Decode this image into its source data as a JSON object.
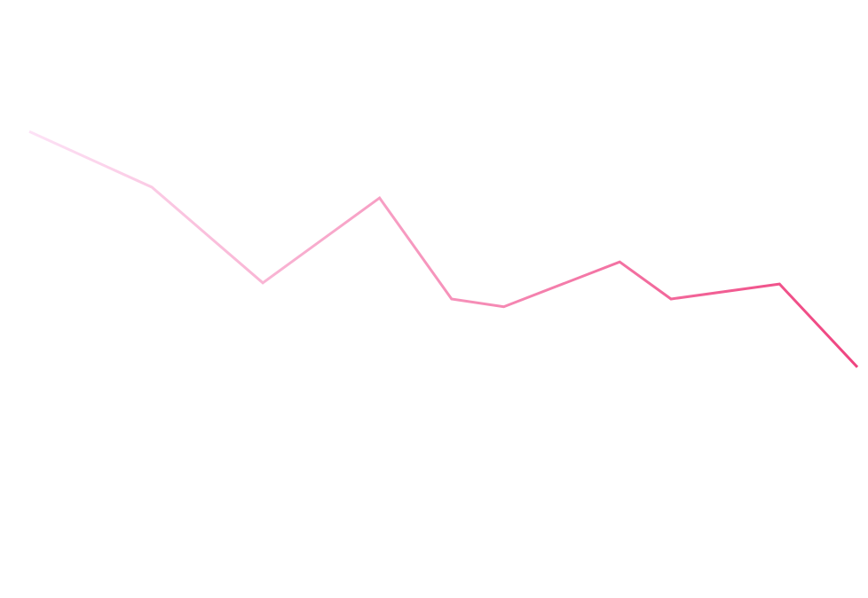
{
  "chart_data": {
    "type": "line",
    "x": [
      0,
      14.8,
      28.2,
      42.3,
      51.0,
      57.3,
      71.3,
      77.5,
      90.6,
      100
    ],
    "series": [
      {
        "values": [
          78.0,
          68.7,
          52.7,
          66.9,
          50.0,
          48.7,
          56.2,
          50.0,
          52.5,
          38.6
        ]
      }
    ],
    "colors": [
      "#fde2f6",
      "#ef4480"
    ],
    "xlim": [
      0,
      100
    ],
    "ylim": [
      0,
      100
    ],
    "grid": false
  }
}
